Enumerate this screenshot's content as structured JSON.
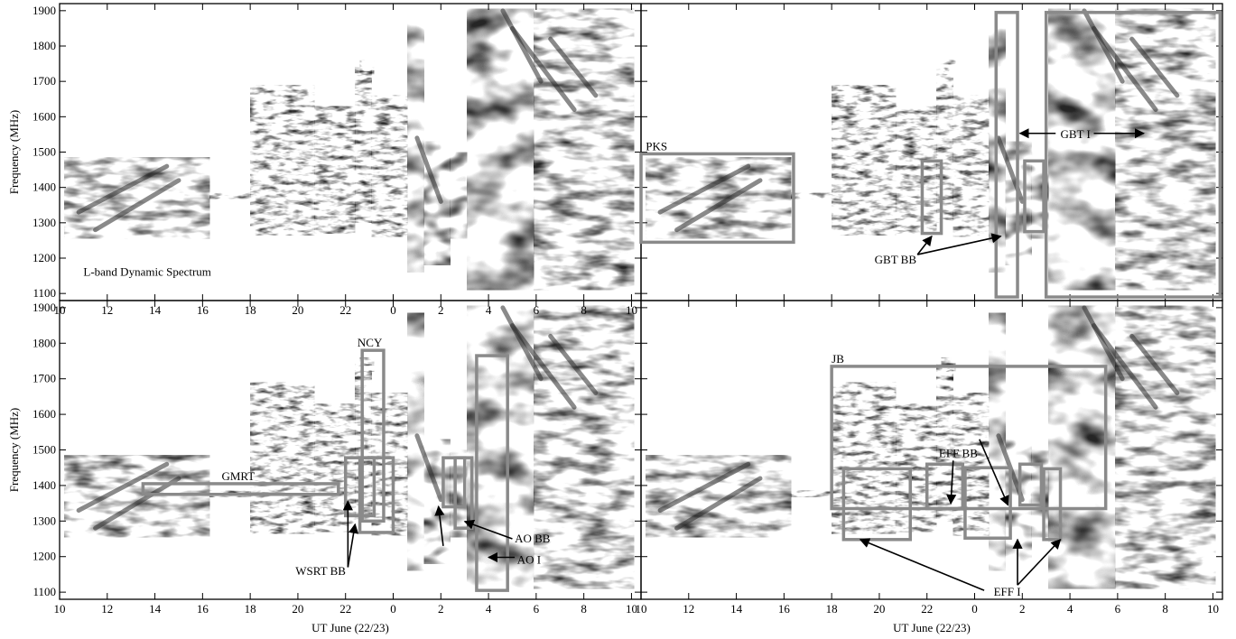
{
  "chart_data": [
    {
      "type": "heatmap",
      "title": "",
      "xlabel": "",
      "ylabel": "Frequency (MHz)",
      "xticks": [
        "10",
        "12",
        "14",
        "16",
        "18",
        "20",
        "22",
        "0",
        "2",
        "4",
        "6",
        "8",
        "10"
      ],
      "yticks": [
        1100,
        1200,
        1300,
        1400,
        1500,
        1600,
        1700,
        1800,
        1900
      ],
      "xlim": [
        10,
        34.4
      ],
      "ylim": [
        1080,
        1920
      ],
      "inset_label": "L-band Dynamic Spectrum",
      "boxes": [],
      "arrows": []
    },
    {
      "type": "heatmap",
      "title": "",
      "xlabel": "",
      "ylabel": "",
      "xticks": [],
      "yticks": [],
      "xlim": [
        10,
        34.4
      ],
      "ylim": [
        1080,
        1920
      ],
      "inset_label": "",
      "boxes": [
        {
          "name": "PKS",
          "x": [
            10.0,
            16.4
          ],
          "y": [
            1245,
            1495
          ]
        },
        {
          "name": "GBT BB",
          "x": [
            21.8,
            22.6
          ],
          "y": [
            1270,
            1475
          ]
        },
        {
          "name": "GBT BB",
          "x": [
            26.1,
            26.9
          ],
          "y": [
            1275,
            1475
          ]
        },
        {
          "name": "GBT I",
          "x": [
            24.9,
            25.8
          ],
          "y": [
            1090,
            1895
          ]
        },
        {
          "name": "GBT I",
          "x": [
            27.0,
            34.3
          ],
          "y": [
            1090,
            1895
          ]
        }
      ],
      "labels": [
        {
          "text": "PKS",
          "x": 10.2,
          "y": 1505
        },
        {
          "text": "GBT I",
          "x": 27.6,
          "y": 1540
        },
        {
          "text": "GBT BB",
          "x": 19.8,
          "y": 1185
        }
      ],
      "arrows": [
        {
          "from": [
            27.4,
            1553
          ],
          "to": [
            25.9,
            1553
          ]
        },
        {
          "from": [
            29.0,
            1553
          ],
          "to": [
            31.1,
            1553
          ]
        },
        {
          "from": [
            21.6,
            1210
          ],
          "to": [
            22.2,
            1262
          ]
        },
        {
          "from": [
            21.6,
            1210
          ],
          "to": [
            25.1,
            1262
          ]
        }
      ]
    },
    {
      "type": "heatmap",
      "title": "",
      "xlabel": "UT June (22/23)",
      "ylabel": "Frequency (MHz)",
      "xticks": [
        "10",
        "12",
        "14",
        "16",
        "18",
        "20",
        "22",
        "0",
        "2",
        "4",
        "6",
        "8",
        "10"
      ],
      "yticks": [
        1100,
        1200,
        1300,
        1400,
        1500,
        1600,
        1700,
        1800,
        1900
      ],
      "xlim": [
        10,
        34.4
      ],
      "ylim": [
        1080,
        1920
      ],
      "inset_label": "",
      "boxes": [
        {
          "name": "GMRT",
          "x": [
            13.5,
            21.7
          ],
          "y": [
            1375,
            1405
          ]
        },
        {
          "name": "NCY",
          "x": [
            22.7,
            23.6
          ],
          "y": [
            1300,
            1780
          ]
        },
        {
          "name": "WSRT BB",
          "x": [
            22.0,
            23.2
          ],
          "y": [
            1315,
            1478
          ]
        },
        {
          "name": "WSRT BB",
          "x": [
            22.6,
            24.0
          ],
          "y": [
            1268,
            1478
          ]
        },
        {
          "name": "AO BB",
          "x": [
            26.1,
            27.0
          ],
          "y": [
            1340,
            1478
          ]
        },
        {
          "name": "AO BB",
          "x": [
            26.6,
            27.3
          ],
          "y": [
            1280,
            1478
          ]
        },
        {
          "name": "AO I",
          "x": [
            27.5,
            28.8
          ],
          "y": [
            1105,
            1765
          ]
        }
      ],
      "labels": [
        {
          "text": "NCY",
          "x": 22.5,
          "y": 1790
        },
        {
          "text": "GMRT",
          "x": 16.8,
          "y": 1415
        },
        {
          "text": "WSRT BB",
          "x": 19.9,
          "y": 1148
        },
        {
          "text": "AO BB",
          "x": 29.1,
          "y": 1240
        },
        {
          "text": "AO I",
          "x": 29.2,
          "y": 1180
        }
      ],
      "arrows": [
        {
          "from": [
            22.1,
            1170
          ],
          "to": [
            22.1,
            1356
          ]
        },
        {
          "from": [
            22.1,
            1170
          ],
          "to": [
            22.4,
            1291
          ]
        },
        {
          "from": [
            26.1,
            1230
          ],
          "to": [
            25.9,
            1341
          ]
        },
        {
          "from": [
            29.0,
            1250
          ],
          "to": [
            27.0,
            1299
          ]
        },
        {
          "from": [
            29.1,
            1198
          ],
          "to": [
            28.0,
            1198
          ]
        }
      ]
    },
    {
      "type": "heatmap",
      "title": "",
      "xlabel": "UT June (22/23)",
      "ylabel": "",
      "xticks": [
        "10",
        "12",
        "14",
        "16",
        "18",
        "20",
        "22",
        "0",
        "2",
        "4",
        "6",
        "8",
        "10"
      ],
      "yticks": [],
      "xlim": [
        10,
        34.4
      ],
      "ylim": [
        1080,
        1920
      ],
      "inset_label": "",
      "boxes": [
        {
          "name": "JB",
          "x": [
            18.0,
            29.5
          ],
          "y": [
            1335,
            1735
          ]
        },
        {
          "name": "EFF I",
          "x": [
            18.5,
            21.3
          ],
          "y": [
            1248,
            1447
          ]
        },
        {
          "name": "EFF I",
          "x": [
            22.0,
            23.5
          ],
          "y": [
            1335,
            1460
          ]
        },
        {
          "name": "EFF BB",
          "x": [
            23.6,
            25.5
          ],
          "y": [
            1252,
            1450
          ]
        },
        {
          "name": "EFF BB",
          "x": [
            25.9,
            26.8
          ],
          "y": [
            1345,
            1460
          ]
        },
        {
          "name": "EFF I",
          "x": [
            26.9,
            27.6
          ],
          "y": [
            1248,
            1447
          ]
        }
      ],
      "labels": [
        {
          "text": "JB",
          "x": 18.0,
          "y": 1745
        },
        {
          "text": "EFF BB",
          "x": 22.5,
          "y": 1480
        },
        {
          "text": "EFF I",
          "x": 24.8,
          "y": 1090
        }
      ],
      "arrows": [
        {
          "from": [
            23.1,
            1470
          ],
          "to": [
            23.0,
            1349
          ]
        },
        {
          "from": [
            24.2,
            1530
          ],
          "to": [
            25.4,
            1345
          ]
        },
        {
          "from": [
            24.4,
            1105
          ],
          "to": [
            19.2,
            1248
          ]
        },
        {
          "from": [
            25.8,
            1120
          ],
          "to": [
            25.8,
            1248
          ]
        },
        {
          "from": [
            25.8,
            1120
          ],
          "to": [
            27.6,
            1248
          ]
        }
      ]
    }
  ],
  "colors": {
    "box": "#8a8a8a",
    "axis": "#000000",
    "spectrum_dark": "#222222",
    "spectrum_light": "#ffffff"
  }
}
